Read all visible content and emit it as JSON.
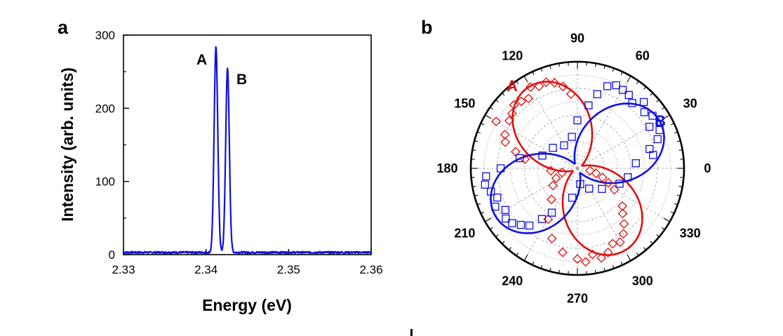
{
  "chart_data": [
    {
      "panel": "a",
      "type": "line",
      "xlabel": "Energy (eV)",
      "ylabel": "Intensity (arb. units)",
      "xlim": [
        2.33,
        2.36
      ],
      "ylim": [
        0,
        300
      ],
      "xticks": [
        "2.33",
        "2.34",
        "2.35",
        "2.36"
      ],
      "yticks": [
        "0",
        "100",
        "200",
        "300"
      ],
      "color": "#1010e0",
      "peaks": [
        {
          "label": "A",
          "energy": 2.3412,
          "intensity": 284,
          "width": 0.00022
        },
        {
          "label": "B",
          "energy": 2.3426,
          "intensity": 254,
          "width": 0.00022
        }
      ],
      "baseline": 3
    },
    {
      "panel": "b",
      "type": "scatter",
      "polar": true,
      "angle_labels": [
        "0",
        "30",
        "60",
        "90",
        "120",
        "150",
        "180",
        "210",
        "240",
        "270",
        "300",
        "330"
      ],
      "series": [
        {
          "name": "A",
          "color": "#e01010",
          "marker": "diamond",
          "fit_axis_deg": 120,
          "angles": [
            95,
            100,
            105,
            110,
            115,
            120,
            125,
            130,
            135,
            140,
            145,
            150,
            155,
            160,
            165,
            170,
            185,
            195,
            205,
            215,
            230,
            240,
            250,
            260,
            270,
            275,
            280,
            285,
            290,
            295,
            300,
            305,
            310,
            315,
            320,
            330,
            335,
            340,
            345,
            350
          ],
          "radii": [
            0.7,
            0.78,
            0.83,
            0.86,
            0.85,
            0.88,
            0.8,
            0.82,
            0.84,
            0.8,
            0.78,
            0.88,
            0.75,
            0.72,
            0.6,
            0.5,
            0.25,
            0.15,
            0.22,
            0.28,
            0.38,
            0.55,
            0.7,
            0.8,
            0.85,
            0.88,
            0.82,
            0.87,
            0.84,
            0.78,
            0.8,
            0.75,
            0.68,
            0.6,
            0.55,
            0.4,
            0.32,
            0.25,
            0.18,
            0.12
          ]
        },
        {
          "name": "B",
          "color": "#1010e0",
          "marker": "square",
          "fit_axis_deg": 30,
          "angles": [
            5,
            10,
            15,
            20,
            25,
            30,
            35,
            40,
            45,
            50,
            55,
            60,
            65,
            70,
            75,
            80,
            90,
            100,
            120,
            140,
            160,
            170,
            180,
            185,
            190,
            195,
            200,
            205,
            210,
            215,
            220,
            225,
            230,
            235,
            240,
            260,
            280,
            300,
            320,
            340,
            350
          ],
          "radii": [
            0.55,
            0.72,
            0.7,
            0.8,
            0.85,
            0.78,
            0.86,
            0.82,
            0.88,
            0.8,
            0.84,
            0.85,
            0.86,
            0.82,
            0.72,
            0.6,
            0.45,
            0.3,
            0.25,
            0.3,
            0.35,
            0.55,
            0.72,
            0.86,
            0.88,
            0.84,
            0.8,
            0.85,
            0.78,
            0.82,
            0.8,
            0.75,
            0.7,
            0.58,
            0.48,
            0.28,
            0.15,
            0.22,
            0.3,
            0.42,
            0.48
          ]
        }
      ]
    }
  ],
  "labels": {
    "panel_a": "a",
    "panel_b": "b"
  }
}
